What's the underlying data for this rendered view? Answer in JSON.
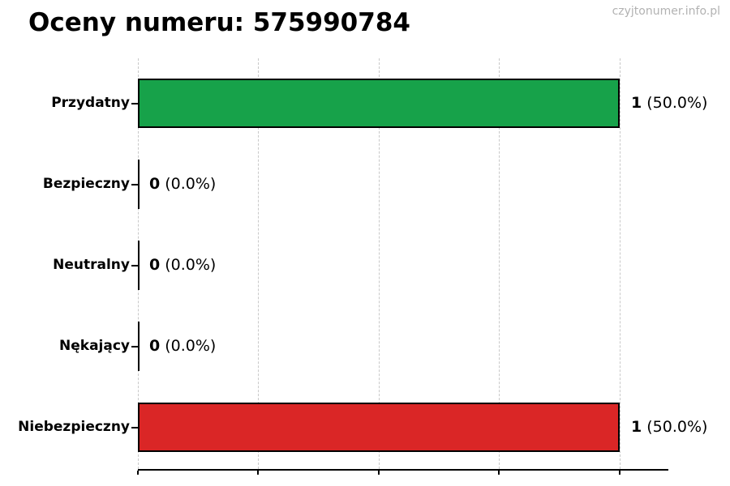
{
  "title": "Oceny numeru: 575990784",
  "watermark": "czyjtonumer.info.pl",
  "colors": {
    "background": "#ffffff",
    "title": "#000000",
    "watermark": "#b2b2b2",
    "grid": "#c8c8c8",
    "axis": "#000000",
    "bar_edge": "#000000",
    "positive_green": "#17a24a",
    "negative_red": "#da2626"
  },
  "chart_data": {
    "type": "bar",
    "orientation": "horizontal",
    "title": "Oceny numeru: 575990784",
    "categories": [
      "Przydatny",
      "Bezpieczny",
      "Neutralny",
      "Nękający",
      "Niebezpieczny"
    ],
    "values": [
      1,
      0,
      0,
      0,
      1
    ],
    "percentages": [
      50.0,
      0.0,
      0.0,
      0.0,
      50.0
    ],
    "bar_colors": [
      "#17a24a",
      null,
      null,
      null,
      "#da2626"
    ],
    "xlim": [
      0,
      1.1
    ],
    "x_gridlines": [
      0,
      0.25,
      0.5,
      0.75,
      1.0
    ],
    "grid_style": "dashed-vertical",
    "x_tick_labels_visible": false,
    "rows": [
      {
        "label": "Przydatny",
        "value": 1,
        "value_label": "1",
        "pct_label": "(50.0%)",
        "color": "#17a24a"
      },
      {
        "label": "Bezpieczny",
        "value": 0,
        "value_label": "0",
        "pct_label": "(0.0%)",
        "color": null
      },
      {
        "label": "Neutralny",
        "value": 0,
        "value_label": "0",
        "pct_label": "(0.0%)",
        "color": null
      },
      {
        "label": "Nękający",
        "value": 0,
        "value_label": "0",
        "pct_label": "(0.0%)",
        "color": null
      },
      {
        "label": "Niebezpieczny",
        "value": 1,
        "value_label": "1",
        "pct_label": "(50.0%)",
        "color": "#da2626"
      }
    ]
  }
}
